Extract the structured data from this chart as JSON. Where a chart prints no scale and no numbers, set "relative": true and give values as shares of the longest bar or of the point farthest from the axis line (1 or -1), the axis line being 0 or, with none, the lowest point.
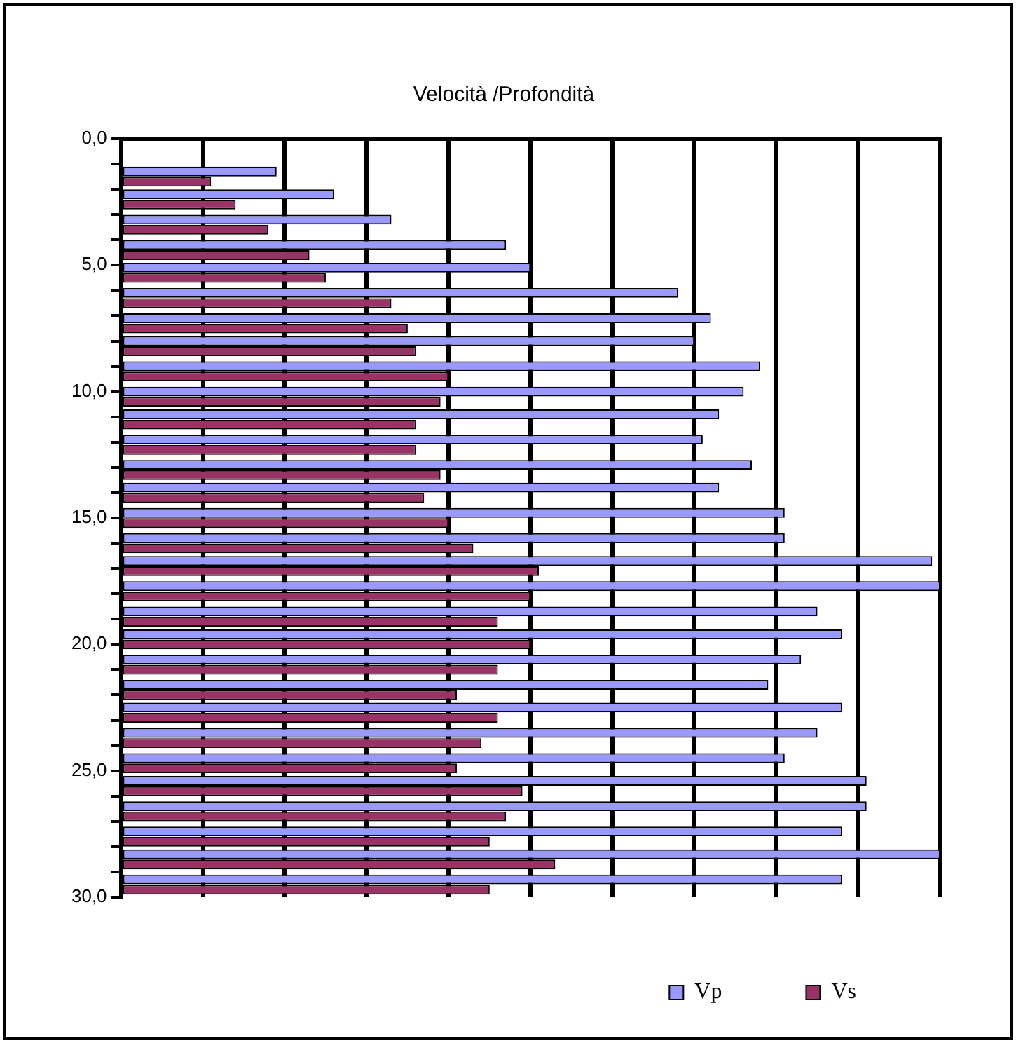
{
  "chart_data": {
    "type": "bar",
    "orientation": "horizontal",
    "title": "Velocità /Profondità",
    "relative": true,
    "x": [
      1.5,
      2.4,
      3.4,
      4.4,
      5.3,
      6.3,
      7.3,
      8.2,
      9.2,
      10.2,
      11.1,
      12.1,
      13.1,
      14.0,
      15.0,
      16.0,
      16.9,
      17.9,
      18.9,
      19.8,
      20.8,
      21.8,
      22.7,
      23.7,
      24.7,
      25.6,
      26.6,
      27.6,
      28.5,
      29.5
    ],
    "ylim": [
      30,
      0
    ],
    "yticks": [
      {
        "value": 0,
        "label": "0,0"
      },
      {
        "value": 1,
        "label": null
      },
      {
        "value": 2,
        "label": null
      },
      {
        "value": 3,
        "label": null
      },
      {
        "value": 4,
        "label": null
      },
      {
        "value": 5,
        "label": "5,0"
      },
      {
        "value": 6,
        "label": null
      },
      {
        "value": 7,
        "label": null
      },
      {
        "value": 8,
        "label": null
      },
      {
        "value": 9,
        "label": null
      },
      {
        "value": 10,
        "label": "10,0"
      },
      {
        "value": 11,
        "label": null
      },
      {
        "value": 12,
        "label": null
      },
      {
        "value": 13,
        "label": null
      },
      {
        "value": 14,
        "label": null
      },
      {
        "value": 15,
        "label": "15,0"
      },
      {
        "value": 16,
        "label": null
      },
      {
        "value": 17,
        "label": null
      },
      {
        "value": 18,
        "label": null
      },
      {
        "value": 19,
        "label": null
      },
      {
        "value": 20,
        "label": "20,0"
      },
      {
        "value": 21,
        "label": null
      },
      {
        "value": 22,
        "label": null
      },
      {
        "value": 23,
        "label": null
      },
      {
        "value": 24,
        "label": null
      },
      {
        "value": 25,
        "label": "25,0"
      },
      {
        "value": 26,
        "label": null
      },
      {
        "value": 27,
        "label": null
      },
      {
        "value": 28,
        "label": null
      },
      {
        "value": 29,
        "label": null
      },
      {
        "value": 30,
        "label": "30,0"
      }
    ],
    "series": [
      {
        "name": "Vp",
        "color": "#9999ff",
        "values": [
          0.19,
          0.26,
          0.33,
          0.47,
          0.5,
          0.68,
          0.72,
          0.7,
          0.78,
          0.76,
          0.73,
          0.71,
          0.77,
          0.73,
          0.81,
          0.81,
          0.99,
          1,
          0.85,
          0.88,
          0.83,
          0.79,
          0.88,
          0.85,
          0.81,
          0.91,
          0.91,
          0.88,
          1,
          0.88
        ]
      },
      {
        "name": "Vs",
        "color": "#993366",
        "values": [
          0.11,
          0.14,
          0.18,
          0.23,
          0.25,
          0.33,
          0.35,
          0.36,
          0.4,
          0.39,
          0.36,
          0.36,
          0.39,
          0.37,
          0.4,
          0.43,
          0.51,
          0.5,
          0.46,
          0.5,
          0.46,
          0.41,
          0.46,
          0.44,
          0.41,
          0.49,
          0.47,
          0.45,
          0.53,
          0.45
        ]
      }
    ],
    "grid": "x",
    "legend": "bottom right"
  }
}
